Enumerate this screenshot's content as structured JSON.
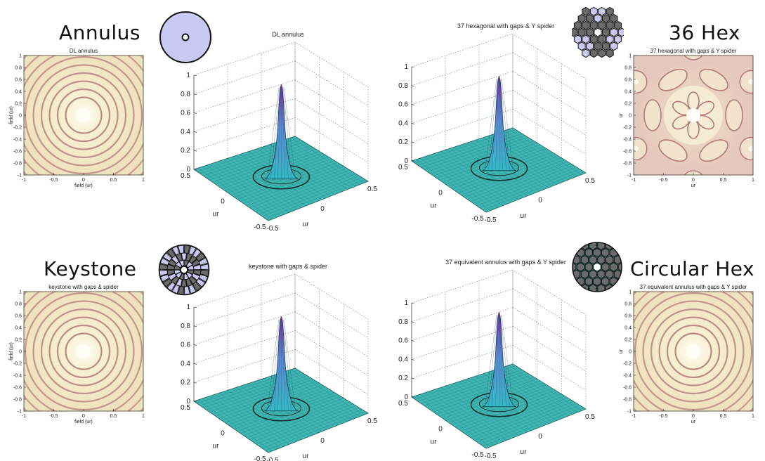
{
  "labels": {
    "annulus": "Annulus",
    "hex36": "36 Hex",
    "keystone": "Keystone",
    "circular_hex": "Circular Hex"
  },
  "panels": {
    "annulus_2d": {
      "title": "DL annulus",
      "xlabel": "field (ur)",
      "ylabel": "field (ur)",
      "xticks": [
        "-1",
        "-0.5",
        "0",
        "0.5",
        "1"
      ],
      "yticks": [
        "1",
        "0.8",
        "0.6",
        "0.4",
        "0.2",
        "0",
        "-0.2",
        "-0.4",
        "-0.6",
        "-0.8",
        "-1"
      ]
    },
    "annulus_3d": {
      "title": "DL annulus",
      "zticks": [
        "1",
        "0.8",
        "0.6",
        "0.4",
        "0.2",
        "0"
      ],
      "ax1_ticks": [
        "0.5",
        "0",
        "-0.5"
      ],
      "ax2_ticks": [
        "-0.5",
        "0",
        "0.5"
      ],
      "ax1_label": "ur",
      "ax2_label": "ur"
    },
    "hex_3d": {
      "title": "37 hexagonal with gaps & Y spider",
      "zticks": [
        "1",
        "0.8",
        "0.6",
        "0.4",
        "0.2",
        "0"
      ],
      "ax1_ticks": [
        "0.5",
        "0",
        "-0.5"
      ],
      "ax2_ticks": [
        "-0.5",
        "0",
        "0.5"
      ],
      "ax1_label": "ur",
      "ax2_label": "ur"
    },
    "hex_2d": {
      "title": "37 hexagonal with gaps & Y spider",
      "xlabel": "ur",
      "ylabel": "ur",
      "xticks": [
        "-1",
        "-0.5",
        "0",
        "0.5",
        "1"
      ],
      "yticks": [
        "1",
        "0.8",
        "0.6",
        "0.4",
        "0.2",
        "0",
        "-0.2",
        "-0.4",
        "-0.6",
        "-0.8",
        "-1"
      ]
    },
    "keystone_2d": {
      "title": "keystone with gaps & spider",
      "xlabel": "field (ur)",
      "ylabel": "field (ur)",
      "xticks": [
        "-1",
        "-0.5",
        "0",
        "0.5",
        "1"
      ],
      "yticks": [
        "1",
        "0.8",
        "0.6",
        "0.4",
        "0.2",
        "0",
        "-0.2",
        "-0.4",
        "-0.6",
        "-0.8",
        "-1"
      ]
    },
    "keystone_3d": {
      "title": "keystone with gaps & spider",
      "zticks": [
        "1",
        "0.8",
        "0.6",
        "0.4",
        "0.2",
        "0"
      ],
      "ax1_ticks": [
        "0.5",
        "0",
        "-0.5"
      ],
      "ax2_ticks": [
        "-0.5",
        "0",
        "0.5"
      ],
      "ax1_label": "ur",
      "ax2_label": "ur"
    },
    "circhex_3d": {
      "title": "37 equivalent annulus with gaps & Y spider",
      "zticks": [
        "1",
        "0.8",
        "0.6",
        "0.4",
        "0.2",
        "0"
      ],
      "ax1_ticks": [
        "0.5",
        "0",
        "-0.5"
      ],
      "ax2_ticks": [
        "-0.5",
        "0",
        "0.5"
      ],
      "ax1_label": "ur",
      "ax2_label": "ur"
    },
    "circhex_2d": {
      "title": "37 equivalent annulus with gaps & Y spider",
      "xlabel": "ur",
      "ylabel": "ur",
      "xticks": [
        "-1",
        "-0.5",
        "0",
        "0.5",
        "1"
      ],
      "yticks": [
        "1",
        "0.8",
        "0.6",
        "0.4",
        "0.2",
        "0",
        "-0.2",
        "-0.4",
        "-0.6",
        "-0.8",
        "-1"
      ]
    }
  },
  "colors": {
    "psf_bg": "#f1e8c6",
    "psf_ring": "#b07a78",
    "surface": "#3fb6b4",
    "peak": "#8a2aa8",
    "pupil_fill": "#c9c9f3",
    "segment_grey": "#6b6b6b",
    "segment_teal": "#2a9a94"
  }
}
